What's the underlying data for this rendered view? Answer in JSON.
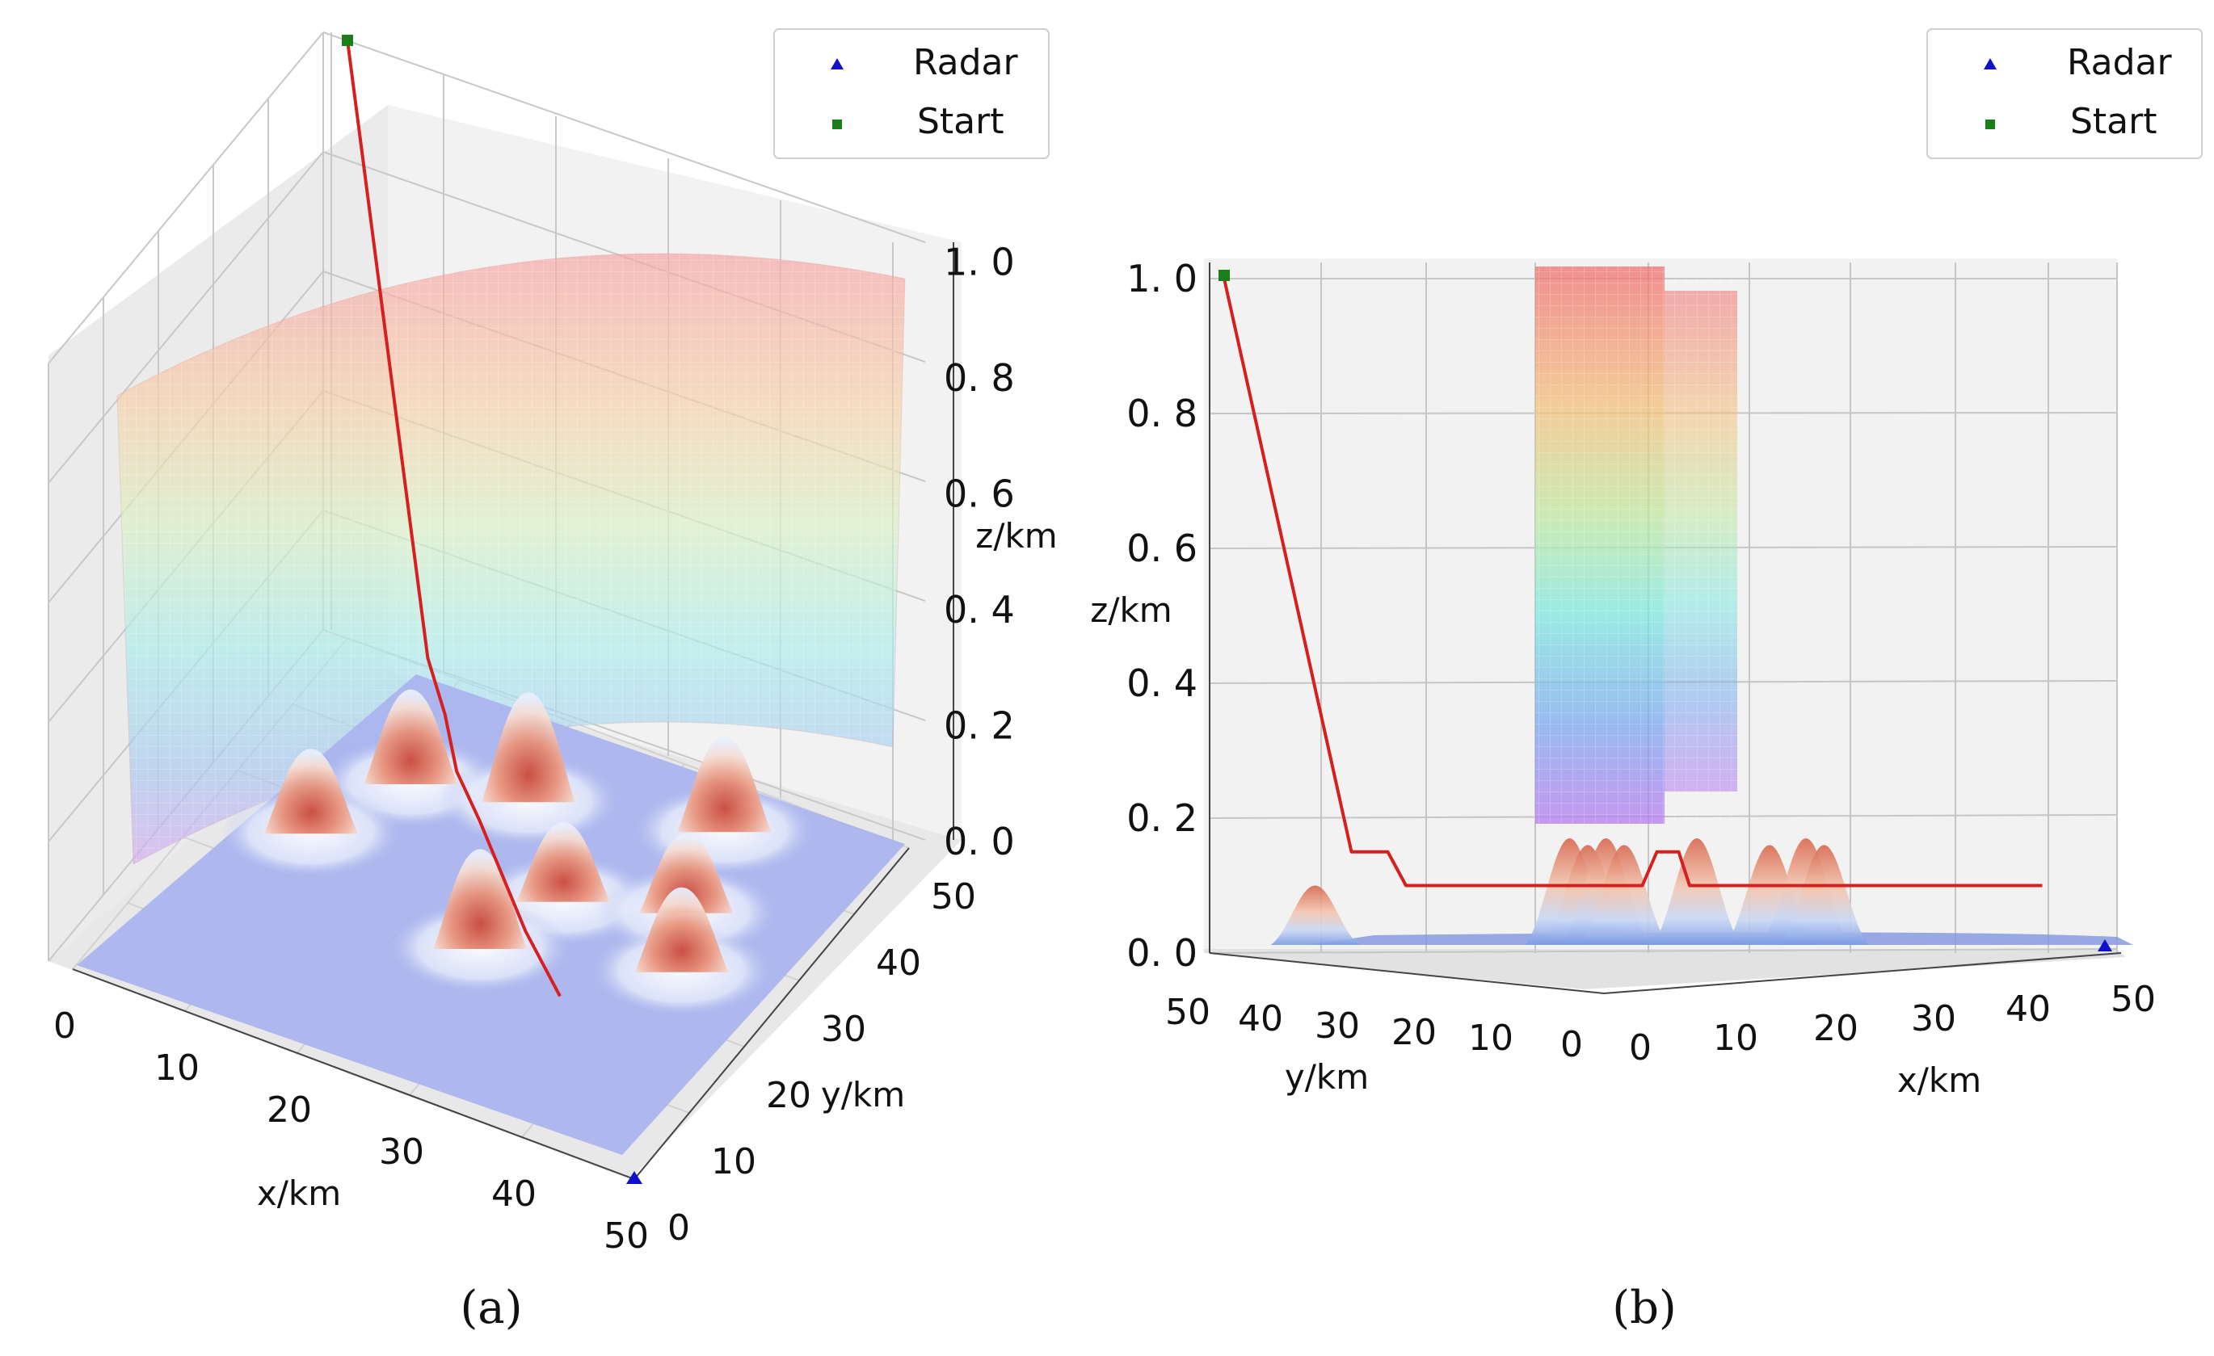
{
  "chart_data": [
    {
      "panel": "(a)",
      "type": "surface3d",
      "view": "perspective",
      "xlabel": "x/km",
      "ylabel": "y/km",
      "zlabel": "z/km",
      "xlim": [
        0,
        50
      ],
      "ylim": [
        0,
        50
      ],
      "zlim": [
        0,
        1.0
      ],
      "x_ticks": [
        "0",
        "10",
        "20",
        "30",
        "40",
        "50"
      ],
      "y_ticks": [
        "0",
        "10",
        "20",
        "30",
        "40",
        "50"
      ],
      "z_ticks": [
        "0. 0",
        "0. 2",
        "0. 4",
        "0. 6",
        "0. 8",
        "1. 0"
      ],
      "legend": {
        "placement": "top-right",
        "entries": [
          {
            "label": "Radar",
            "marker": "triangle",
            "color": "#1010cc"
          },
          {
            "label": "Start",
            "marker": "square",
            "color": "#1a7f1a"
          }
        ]
      },
      "points": {
        "radar": [
          50,
          0,
          0
        ],
        "start": [
          0,
          50,
          1.0
        ]
      },
      "path": [
        [
          0,
          50,
          1.0
        ],
        [
          14,
          36,
          0.22
        ],
        [
          17,
          33,
          0.18
        ],
        [
          20,
          29,
          0.15
        ],
        [
          24,
          25,
          0.14
        ],
        [
          28,
          21,
          0.12
        ],
        [
          32,
          17,
          0.1
        ],
        [
          38,
          11,
          0.1
        ]
      ],
      "peaks": [
        [
          12,
          37,
          0.17
        ],
        [
          21,
          40,
          0.2
        ],
        [
          29,
          30,
          0.14
        ],
        [
          36,
          45,
          0.17
        ],
        [
          8,
          27,
          0.15
        ],
        [
          26,
          21,
          0.18
        ],
        [
          38,
          34,
          0.14
        ],
        [
          41,
          27,
          0.15
        ]
      ],
      "radar_coverage_surface": "cylindrical mesh, z from 0.2 to 0.95, colored by height"
    },
    {
      "panel": "(b)",
      "type": "surface3d",
      "view": "side",
      "xlabel": "x/km",
      "ylabel": "y/km",
      "zlabel": "z/km",
      "xlim": [
        0,
        50
      ],
      "ylim": [
        0,
        50
      ],
      "zlim": [
        0,
        1.0
      ],
      "x_ticks": [
        "0",
        "10",
        "20",
        "30",
        "40",
        "50"
      ],
      "y_ticks": [
        "50",
        "40",
        "30",
        "20",
        "10",
        "0"
      ],
      "z_ticks": [
        "0. 0",
        "0. 2",
        "0. 4",
        "0. 6",
        "0. 8",
        "1. 0"
      ],
      "legend": {
        "placement": "top-right",
        "entries": [
          {
            "label": "Radar",
            "marker": "triangle",
            "color": "#1010cc"
          },
          {
            "label": "Start",
            "marker": "square",
            "color": "#1a7f1a"
          }
        ]
      },
      "path_profile": [
        [
          0,
          1.0
        ],
        [
          7,
          0.15
        ],
        [
          9,
          0.15
        ],
        [
          10,
          0.1
        ],
        [
          23,
          0.1
        ],
        [
          23.8,
          0.15
        ],
        [
          25,
          0.15
        ],
        [
          25.6,
          0.1
        ],
        [
          45,
          0.1
        ]
      ],
      "peaks_profile": [
        [
          5,
          0.1
        ],
        [
          19,
          0.17
        ],
        [
          20,
          0.16
        ],
        [
          21,
          0.17
        ],
        [
          22,
          0.16
        ],
        [
          26,
          0.17
        ],
        [
          30,
          0.16
        ],
        [
          32,
          0.17
        ],
        [
          33,
          0.16
        ]
      ]
    }
  ],
  "captions": {
    "a": "(a)",
    "b": "(b)"
  }
}
